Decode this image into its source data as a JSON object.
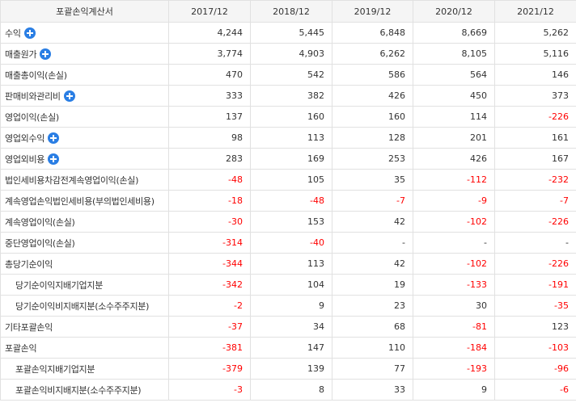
{
  "table": {
    "header": [
      "포괄손익계산서",
      "2017/12",
      "2018/12",
      "2019/12",
      "2020/12",
      "2021/12"
    ],
    "rows": [
      {
        "label": "수익",
        "expand": true,
        "sub": false,
        "values": [
          "4,244",
          "5,445",
          "6,848",
          "8,669",
          "5,262"
        ]
      },
      {
        "label": "매출원가",
        "expand": true,
        "sub": false,
        "values": [
          "3,774",
          "4,903",
          "6,262",
          "8,105",
          "5,116"
        ]
      },
      {
        "label": "매출총이익(손실)",
        "expand": false,
        "sub": false,
        "values": [
          "470",
          "542",
          "586",
          "564",
          "146"
        ]
      },
      {
        "label": "판매비와관리비",
        "expand": true,
        "sub": false,
        "values": [
          "333",
          "382",
          "426",
          "450",
          "373"
        ]
      },
      {
        "label": "영업이익(손실)",
        "expand": false,
        "sub": false,
        "values": [
          "137",
          "160",
          "160",
          "114",
          "-226"
        ]
      },
      {
        "label": "영업외수익",
        "expand": true,
        "sub": false,
        "values": [
          "98",
          "113",
          "128",
          "201",
          "161"
        ]
      },
      {
        "label": "영업외비용",
        "expand": true,
        "sub": false,
        "values": [
          "283",
          "169",
          "253",
          "426",
          "167"
        ]
      },
      {
        "label": "법인세비용차감전계속영업이익(손실)",
        "expand": false,
        "sub": false,
        "values": [
          "-48",
          "105",
          "35",
          "-112",
          "-232"
        ]
      },
      {
        "label": "계속영업손익법인세비용(부의법인세비용)",
        "expand": false,
        "sub": false,
        "values": [
          "-18",
          "-48",
          "-7",
          "-9",
          "-7"
        ]
      },
      {
        "label": "계속영업이익(손실)",
        "expand": false,
        "sub": false,
        "values": [
          "-30",
          "153",
          "42",
          "-102",
          "-226"
        ]
      },
      {
        "label": "중단영업이익(손실)",
        "expand": false,
        "sub": false,
        "values": [
          "-314",
          "-40",
          "-",
          "-",
          "-"
        ]
      },
      {
        "label": "총당기순이익",
        "expand": false,
        "sub": false,
        "values": [
          "-344",
          "113",
          "42",
          "-102",
          "-226"
        ]
      },
      {
        "label": "당기순이익지배기업지분",
        "expand": false,
        "sub": true,
        "values": [
          "-342",
          "104",
          "19",
          "-133",
          "-191"
        ]
      },
      {
        "label": "당기순이익비지배지분(소수주주지분)",
        "expand": false,
        "sub": true,
        "values": [
          "-2",
          "9",
          "23",
          "30",
          "-35"
        ]
      },
      {
        "label": "기타포괄손익",
        "expand": false,
        "sub": false,
        "values": [
          "-37",
          "34",
          "68",
          "-81",
          "123"
        ]
      },
      {
        "label": "포괄손익",
        "expand": false,
        "sub": false,
        "values": [
          "-381",
          "147",
          "110",
          "-184",
          "-103"
        ]
      },
      {
        "label": "포괄손익지배기업지분",
        "expand": false,
        "sub": true,
        "values": [
          "-379",
          "139",
          "77",
          "-193",
          "-96"
        ]
      },
      {
        "label": "포괄손익비지배지분(소수주주지분)",
        "expand": false,
        "sub": true,
        "values": [
          "-3",
          "8",
          "33",
          "9",
          "-6"
        ]
      }
    ]
  },
  "colors": {
    "negative": "#ff0000",
    "expand_icon": "#2a7ee4",
    "header_bg": "#f5f5f5",
    "border": "#e1e1e1"
  },
  "icons": {
    "expand": "plus-circle-icon"
  }
}
